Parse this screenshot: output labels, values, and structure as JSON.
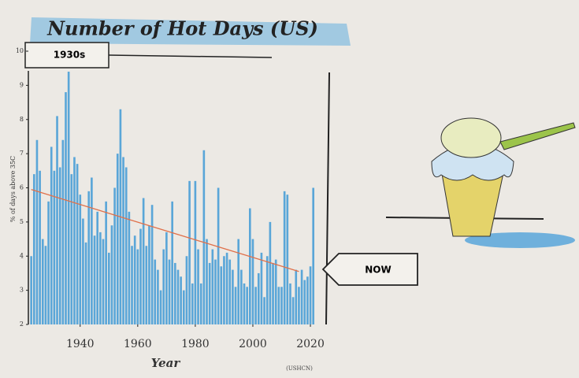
{
  "chart_data": {
    "type": "bar",
    "title": "Number of Hot Days (US)",
    "x_label": "Year",
    "y_label": "% of days above 35C",
    "source": "(USHCN)",
    "annotations": [
      "1930s",
      "NOW"
    ],
    "x": [
      1923,
      1924,
      1925,
      1926,
      1927,
      1928,
      1929,
      1930,
      1931,
      1932,
      1933,
      1934,
      1935,
      1936,
      1937,
      1938,
      1939,
      1940,
      1941,
      1942,
      1943,
      1944,
      1945,
      1946,
      1947,
      1948,
      1949,
      1950,
      1951,
      1952,
      1953,
      1954,
      1955,
      1956,
      1957,
      1958,
      1959,
      1960,
      1961,
      1962,
      1963,
      1964,
      1965,
      1966,
      1967,
      1968,
      1969,
      1970,
      1971,
      1972,
      1973,
      1974,
      1975,
      1976,
      1977,
      1978,
      1979,
      1980,
      1981,
      1982,
      1983,
      1984,
      1985,
      1986,
      1987,
      1988,
      1989,
      1990,
      1991,
      1992,
      1993,
      1994,
      1995,
      1996,
      1997,
      1998,
      1999,
      2000,
      2001,
      2002,
      2003,
      2004,
      2005,
      2006,
      2007,
      2008,
      2009,
      2010,
      2011,
      2012,
      2013,
      2014,
      2015,
      2016,
      2017,
      2018,
      2019,
      2020,
      2021
    ],
    "series": [
      {
        "name": "Hot days",
        "color": "#5aa6d8",
        "values": [
          4.0,
          6.4,
          7.4,
          6.5,
          4.5,
          4.3,
          5.6,
          7.2,
          6.5,
          8.1,
          6.6,
          7.4,
          8.8,
          9.4,
          6.4,
          6.9,
          6.7,
          5.8,
          5.1,
          4.4,
          5.9,
          6.3,
          4.6,
          5.3,
          4.7,
          4.5,
          5.6,
          4.1,
          4.9,
          6.0,
          7.0,
          8.3,
          6.9,
          6.6,
          5.3,
          4.3,
          4.6,
          4.2,
          4.8,
          5.7,
          4.3,
          4.9,
          5.5,
          3.9,
          3.6,
          3.0,
          4.2,
          4.7,
          3.9,
          5.6,
          3.8,
          3.6,
          3.4,
          3.0,
          4.0,
          6.2,
          3.2,
          6.2,
          4.2,
          3.2,
          7.1,
          4.5,
          3.8,
          4.2,
          3.9,
          6.0,
          3.7,
          4.0,
          4.1,
          3.9,
          3.6,
          3.1,
          4.5,
          3.6,
          3.2,
          3.1,
          5.4,
          4.5,
          3.1,
          3.5,
          4.1,
          2.8,
          4.0,
          5.0,
          3.8,
          3.9,
          3.1,
          3.1,
          5.9,
          5.8,
          3.2,
          2.8,
          3.6,
          3.1,
          3.6,
          3.3,
          3.4,
          3.7,
          6.0
        ]
      }
    ],
    "trend_line": {
      "x": [
        1923,
        2016
      ],
      "values": [
        5.95,
        3.55
      ],
      "color": "#e0704a"
    },
    "xlim": [
      1922,
      2023
    ],
    "xticks": [
      1940,
      1960,
      1980,
      2000,
      2020
    ],
    "ylim": [
      2,
      10
    ],
    "yticks": [
      2,
      3,
      4,
      5,
      6,
      7,
      8,
      9,
      10
    ]
  }
}
